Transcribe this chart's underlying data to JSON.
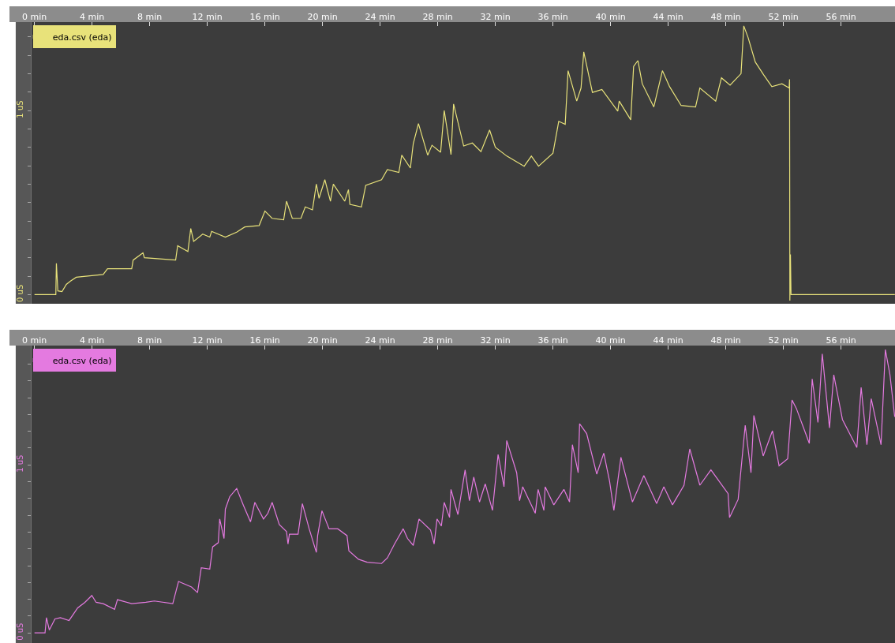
{
  "chart_data": [
    {
      "type": "line",
      "legend": "top left",
      "grid": false,
      "xlim": [
        -0.22,
        59.75
      ],
      "ylim": [
        -0.05,
        1.48
      ],
      "xticks": [
        {
          "value": 0,
          "label": "0 min"
        },
        {
          "value": 4,
          "label": "4 min"
        },
        {
          "value": 8,
          "label": "8 min"
        },
        {
          "value": 12,
          "label": "12 min"
        },
        {
          "value": 16,
          "label": "16 min"
        },
        {
          "value": 20,
          "label": "20 min"
        },
        {
          "value": 24,
          "label": "24 min"
        },
        {
          "value": 28,
          "label": "28 min"
        },
        {
          "value": 32,
          "label": "32 min"
        },
        {
          "value": 36,
          "label": "36 min"
        },
        {
          "value": 40,
          "label": "40 min"
        },
        {
          "value": 44,
          "label": "44 min"
        },
        {
          "value": 48,
          "label": "48 min"
        },
        {
          "value": 52,
          "label": "52 min"
        },
        {
          "value": 56,
          "label": "56 min"
        }
      ],
      "yticks": [
        {
          "value": 0,
          "label": "0 uS"
        },
        {
          "value": 0.1,
          "label": null
        },
        {
          "value": 0.2,
          "label": null
        },
        {
          "value": 0.3,
          "label": null
        },
        {
          "value": 0.4,
          "label": null
        },
        {
          "value": 0.5,
          "label": null
        },
        {
          "value": 0.6,
          "label": null
        },
        {
          "value": 0.7,
          "label": null
        },
        {
          "value": 0.8,
          "label": null
        },
        {
          "value": 0.9,
          "label": null
        },
        {
          "value": 1,
          "label": "1 uS"
        },
        {
          "value": 1.1,
          "label": null
        },
        {
          "value": 1.2,
          "label": null
        },
        {
          "value": 1.3,
          "label": null
        },
        {
          "value": 1.4,
          "label": null
        }
      ],
      "series": [
        {
          "name": "eda.csv (eda)",
          "color": "#e8e27a",
          "x": [
            0,
            1.48,
            1.52,
            1.62,
            1.91,
            2.21,
            2.5,
            2.9,
            4.77,
            5.07,
            6.75,
            6.85,
            7.53,
            7.63,
            9.8,
            9.94,
            10.65,
            10.85,
            11.05,
            11.68,
            12.17,
            12.3,
            13.25,
            14.04,
            14.6,
            15.6,
            16.0,
            16.5,
            17.3,
            17.5,
            17.9,
            18.5,
            18.8,
            19.3,
            19.57,
            19.76,
            20.16,
            20.55,
            20.75,
            21.54,
            21.8,
            21.9,
            22.7,
            23.0,
            24.1,
            24.5,
            25.3,
            25.5,
            26.1,
            26.3,
            26.66,
            27.3,
            27.6,
            28.2,
            28.45,
            28.92,
            29.1,
            29.8,
            30.4,
            31.0,
            31.6,
            32.0,
            32.8,
            34.0,
            34.5,
            35.0,
            36.0,
            36.4,
            36.85,
            37.05,
            37.65,
            37.95,
            38.14,
            38.74,
            39.4,
            40.5,
            40.6,
            41.4,
            41.6,
            41.9,
            42.2,
            43.0,
            43.6,
            44.1,
            44.9,
            45.9,
            46.2,
            47.3,
            47.7,
            48.3,
            49.06,
            49.25,
            49.55,
            50.05,
            50.64,
            51.2,
            51.9,
            52.4,
            52.43,
            52.45,
            52.49,
            52.53,
            59.74
          ],
          "values": [
            0,
            0,
            0.17,
            0.02,
            0.016,
            0.055,
            0.073,
            0.094,
            0.109,
            0.14,
            0.14,
            0.187,
            0.226,
            0.2,
            0.187,
            0.265,
            0.234,
            0.359,
            0.289,
            0.328,
            0.312,
            0.343,
            0.312,
            0.339,
            0.367,
            0.375,
            0.453,
            0.414,
            0.406,
            0.507,
            0.414,
            0.414,
            0.476,
            0.46,
            0.6,
            0.523,
            0.624,
            0.507,
            0.6,
            0.507,
            0.57,
            0.49,
            0.476,
            0.593,
            0.624,
            0.679,
            0.663,
            0.757,
            0.687,
            0.82,
            0.929,
            0.757,
            0.811,
            0.773,
            1.0,
            0.76,
            1.035,
            0.807,
            0.823,
            0.776,
            0.894,
            0.8,
            0.752,
            0.697,
            0.752,
            0.697,
            0.768,
            0.941,
            0.925,
            1.216,
            1.051,
            1.122,
            1.318,
            1.098,
            1.114,
            0.996,
            1.051,
            0.949,
            1.239,
            1.271,
            1.145,
            1.019,
            1.216,
            1.129,
            1.027,
            1.019,
            1.122,
            1.051,
            1.177,
            1.137,
            1.2,
            1.459,
            1.396,
            1.263,
            1.192,
            1.129,
            1.145,
            1.122,
            1.169,
            -0.033,
            0.218,
            0,
            0
          ]
        }
      ]
    },
    {
      "type": "line",
      "legend": "top left",
      "grid": false,
      "xlim": [
        -0.22,
        59.75
      ],
      "ylim": [
        -0.06,
        1.71
      ],
      "xticks": [
        {
          "value": 0,
          "label": "0 min"
        },
        {
          "value": 4,
          "label": "4 min"
        },
        {
          "value": 8,
          "label": "8 min"
        },
        {
          "value": 12,
          "label": "12 min"
        },
        {
          "value": 16,
          "label": "16 min"
        },
        {
          "value": 20,
          "label": "20 min"
        },
        {
          "value": 24,
          "label": "24 min"
        },
        {
          "value": 28,
          "label": "28 min"
        },
        {
          "value": 32,
          "label": "32 min"
        },
        {
          "value": 36,
          "label": "36 min"
        },
        {
          "value": 40,
          "label": "40 min"
        },
        {
          "value": 44,
          "label": "44 min"
        },
        {
          "value": 48,
          "label": "48 min"
        },
        {
          "value": 52,
          "label": "52 min"
        },
        {
          "value": 56,
          "label": "56 min"
        }
      ],
      "yticks": [
        {
          "value": 0,
          "label": "0 uS"
        },
        {
          "value": 0.1,
          "label": null
        },
        {
          "value": 0.2,
          "label": null
        },
        {
          "value": 0.3,
          "label": null
        },
        {
          "value": 0.4,
          "label": null
        },
        {
          "value": 0.5,
          "label": null
        },
        {
          "value": 0.6,
          "label": null
        },
        {
          "value": 0.7,
          "label": null
        },
        {
          "value": 0.8,
          "label": null
        },
        {
          "value": 0.9,
          "label": null
        },
        {
          "value": 1,
          "label": "1 uS"
        },
        {
          "value": 1.1,
          "label": null
        },
        {
          "value": 1.2,
          "label": null
        },
        {
          "value": 1.3,
          "label": null
        },
        {
          "value": 1.4,
          "label": null
        },
        {
          "value": 1.5,
          "label": null
        },
        {
          "value": 1.6,
          "label": null
        }
      ],
      "series": [
        {
          "name": "eda.csv (eda)",
          "color": "#e47ae0",
          "x": [
            0,
            0.73,
            0.83,
            1.03,
            1.42,
            1.8,
            2.4,
            3.0,
            3.5,
            3.98,
            4.28,
            4.77,
            5.56,
            5.76,
            6.75,
            7.73,
            8.32,
            9.6,
            10.0,
            10.9,
            11.32,
            11.58,
            12.17,
            12.37,
            12.76,
            12.86,
            13.16,
            13.25,
            13.55,
            14.04,
            14.5,
            15.0,
            15.3,
            15.9,
            16.2,
            16.5,
            17.0,
            17.5,
            17.6,
            17.7,
            18.3,
            18.6,
            19.07,
            19.57,
            19.66,
            19.96,
            20.45,
            21.05,
            21.7,
            21.83,
            22.5,
            23.1,
            24.1,
            24.5,
            25.0,
            25.6,
            25.9,
            26.3,
            26.7,
            27.5,
            27.75,
            27.95,
            28.25,
            28.45,
            28.82,
            28.92,
            29.4,
            29.9,
            30.2,
            30.5,
            30.9,
            31.3,
            31.8,
            32.19,
            32.6,
            32.79,
            33.48,
            33.68,
            33.9,
            34.77,
            34.97,
            35.37,
            35.46,
            36.06,
            36.76,
            37.15,
            37.35,
            37.75,
            37.85,
            38.34,
            39.04,
            39.53,
            39.93,
            40.23,
            40.72,
            41.52,
            42.31,
            43.2,
            43.7,
            44.3,
            45.1,
            45.5,
            46.2,
            46.97,
            48.16,
            48.26,
            48.86,
            49.35,
            49.75,
            49.95,
            50.6,
            51.24,
            51.7,
            52.3,
            52.6,
            52.9,
            53.8,
            54.0,
            54.4,
            54.7,
            55.2,
            55.5,
            56.1,
            57.1,
            57.4,
            57.8,
            58.1,
            58.78,
            59.08,
            59.4,
            59.73
          ],
          "values": [
            0,
            0,
            0.091,
            0.017,
            0.083,
            0.091,
            0.074,
            0.149,
            0.182,
            0.223,
            0.182,
            0.174,
            0.14,
            0.198,
            0.174,
            0.182,
            0.19,
            0.174,
            0.306,
            0.273,
            0.24,
            0.388,
            0.38,
            0.512,
            0.537,
            0.678,
            0.562,
            0.736,
            0.81,
            0.86,
            0.76,
            0.661,
            0.777,
            0.678,
            0.711,
            0.777,
            0.645,
            0.603,
            0.529,
            0.587,
            0.587,
            0.769,
            0.62,
            0.479,
            0.579,
            0.727,
            0.62,
            0.62,
            0.579,
            0.488,
            0.438,
            0.421,
            0.413,
            0.446,
            0.529,
            0.62,
            0.562,
            0.521,
            0.678,
            0.612,
            0.529,
            0.678,
            0.636,
            0.777,
            0.687,
            0.854,
            0.704,
            0.97,
            0.787,
            0.928,
            0.779,
            0.887,
            0.729,
            1.062,
            0.87,
            1.145,
            0.953,
            0.787,
            0.87,
            0.712,
            0.854,
            0.729,
            0.87,
            0.762,
            0.854,
            0.779,
            1.12,
            0.953,
            1.245,
            1.186,
            0.945,
            1.07,
            0.903,
            0.729,
            1.045,
            0.779,
            0.937,
            0.77,
            0.87,
            0.762,
            0.879,
            1.095,
            0.879,
            0.97,
            0.829,
            0.687,
            0.795,
            1.236,
            0.953,
            1.294,
            1.053,
            1.203,
            0.995,
            1.037,
            1.386,
            1.336,
            1.128,
            1.511,
            1.253,
            1.661,
            1.22,
            1.536,
            1.27,
            1.103,
            1.461,
            1.12,
            1.394,
            1.12,
            1.686,
            1.536,
            1.286
          ]
        }
      ]
    }
  ]
}
